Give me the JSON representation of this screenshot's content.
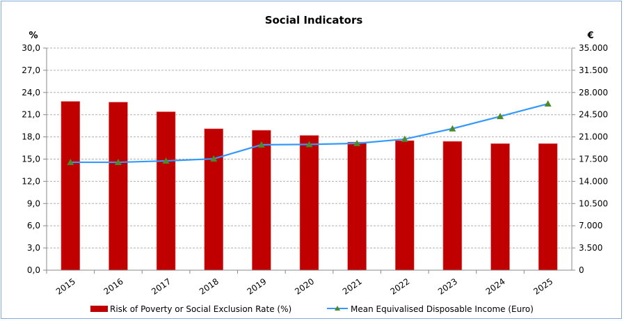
{
  "chart_data": {
    "type": "bar+line",
    "title": "Social Indicators",
    "y_left_label": "%",
    "y_right_label": "€",
    "categories": [
      "2015",
      "2016",
      "2017",
      "2018",
      "2019",
      "2020",
      "2021",
      "2022",
      "2023",
      "2024",
      "2025"
    ],
    "y_left": {
      "min": 0,
      "max": 30,
      "step": 3,
      "ticks": [
        "0,0",
        "3,0",
        "6,0",
        "9,0",
        "12,0",
        "15,0",
        "18,0",
        "21,0",
        "24,0",
        "27,0",
        "30,0"
      ]
    },
    "y_right": {
      "min": 0,
      "max": 35000,
      "step": 3500,
      "ticks": [
        "0",
        "3.500",
        "7.000",
        "10.500",
        "14.000",
        "17.500",
        "21.000",
        "24.500",
        "28.000",
        "31.500",
        "35.000"
      ]
    },
    "grid": true,
    "legend_position": "bottom",
    "series": [
      {
        "name": "Risk of Poverty or Social Exclusion Rate (%)",
        "type": "bar",
        "axis": "left",
        "color": "#c00000",
        "values": [
          22.8,
          22.7,
          21.4,
          19.1,
          18.9,
          18.2,
          17.3,
          17.5,
          17.4,
          17.1,
          17.1
        ]
      },
      {
        "name": "Mean Equivalised Disposable Income (Euro)",
        "type": "line",
        "axis": "right",
        "color": "#3399ff",
        "marker_color": "#4e8a2a",
        "marker": "triangle",
        "values": [
          17000,
          17000,
          17220,
          17550,
          19760,
          19820,
          19980,
          20650,
          22300,
          24230,
          26220
        ]
      }
    ]
  }
}
